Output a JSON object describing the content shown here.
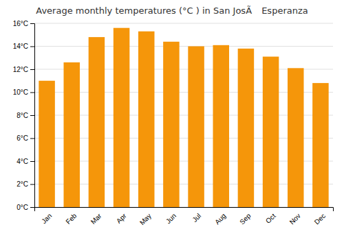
{
  "chart_data": {
    "type": "bar",
    "title": "Average monthly temperatures (°C ) in San JosÃ Esperanza",
    "categories": [
      "Jan",
      "Feb",
      "Mar",
      "Apr",
      "May",
      "Jun",
      "Jul",
      "Aug",
      "Sep",
      "Oct",
      "Nov",
      "Dec"
    ],
    "values": [
      11.0,
      12.6,
      14.8,
      15.6,
      15.3,
      14.4,
      14.0,
      14.1,
      13.8,
      13.1,
      12.1,
      10.8
    ],
    "color": "#F5960A",
    "ylim": [
      0,
      16
    ],
    "yticks": [
      {
        "value": 0,
        "label": "0°C"
      },
      {
        "value": 2,
        "label": "2°C"
      },
      {
        "value": 4,
        "label": "4°C"
      },
      {
        "value": 6,
        "label": "6°C"
      },
      {
        "value": 8,
        "label": "8°C"
      },
      {
        "value": 10,
        "label": "10°C"
      },
      {
        "value": 12,
        "label": "12°C"
      },
      {
        "value": 14,
        "label": "14°C"
      },
      {
        "value": 16,
        "label": "16°C"
      }
    ],
    "grid": true
  }
}
